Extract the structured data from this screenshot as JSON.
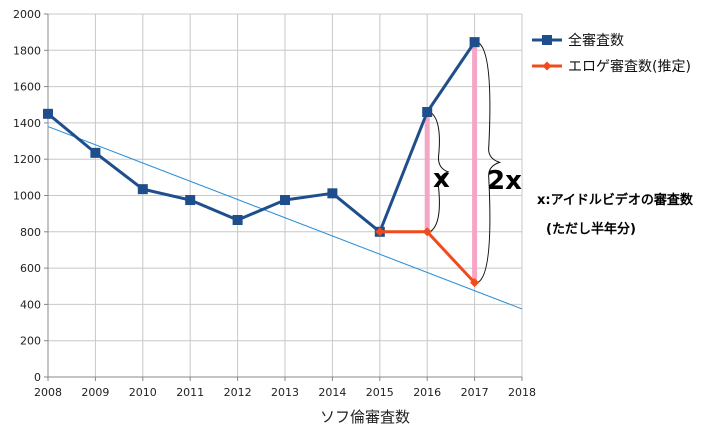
{
  "chart_data": {
    "type": "line",
    "xlabel": "ソフ倫審査数",
    "ylabel": "",
    "xlim": [
      2008,
      2018
    ],
    "ylim": [
      0,
      2000
    ],
    "x_ticks": [
      "2008",
      "2009",
      "2010",
      "2011",
      "2012",
      "2013",
      "2014",
      "2015",
      "2016",
      "2017",
      "2018"
    ],
    "y_ticks": [
      "0",
      "200",
      "400",
      "600",
      "800",
      "1000",
      "1200",
      "1400",
      "1600",
      "1800",
      "2000"
    ],
    "grid": true,
    "legend_position": "right",
    "colors": {
      "series1": "#1f4e8c",
      "series2": "#f04b1c",
      "trend": "#2a8fd6",
      "gap": "#f5a6c4"
    },
    "series": [
      {
        "name": "全審査数",
        "marker": "square",
        "x": [
          2008,
          2009,
          2010,
          2011,
          2012,
          2013,
          2014,
          2015,
          2016,
          2017
        ],
        "values": [
          1450,
          1235,
          1035,
          975,
          865,
          975,
          1012,
          800,
          1460,
          1845
        ]
      },
      {
        "name": "エロゲ審査数(推定)",
        "marker": "diamond",
        "x": [
          2015,
          2016,
          2017
        ],
        "values": [
          800,
          800,
          520
        ]
      }
    ],
    "trendline": {
      "x": [
        2008,
        2018
      ],
      "values": [
        1380,
        375
      ]
    },
    "annotations": {
      "gap_2016": "x",
      "gap_2017": "2x",
      "note_line1": "x:アイドルビデオの審査数",
      "note_line2": "(ただし半年分)"
    }
  }
}
